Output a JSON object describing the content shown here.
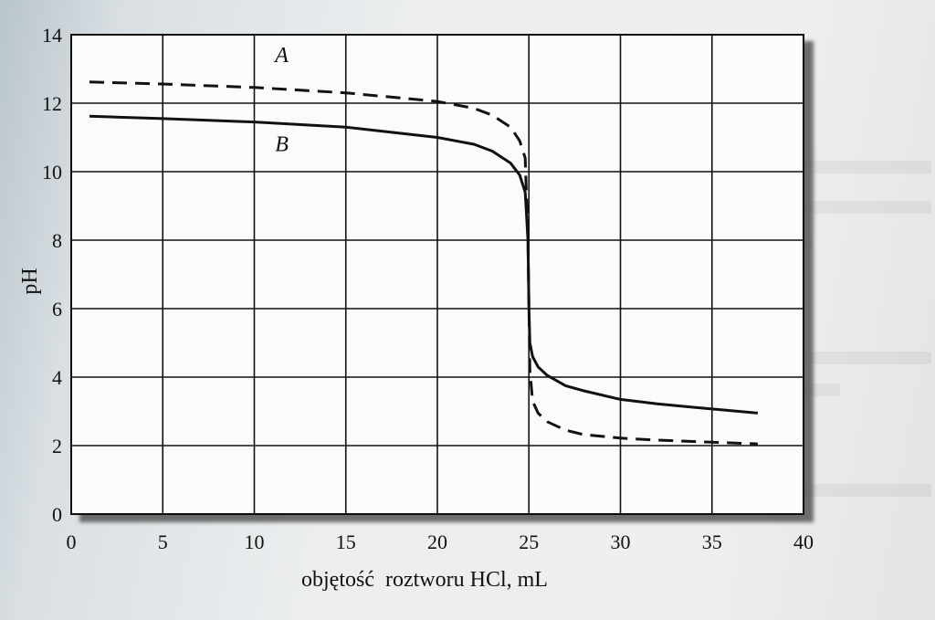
{
  "chart_data": {
    "type": "line",
    "title": "",
    "xlabel": "objętość  roztworu HCl, mL",
    "ylabel": "pH",
    "xlim": [
      0,
      40
    ],
    "ylim": [
      0,
      14
    ],
    "xticks": [
      0,
      5,
      10,
      15,
      20,
      25,
      30,
      35,
      40
    ],
    "yticks": [
      0,
      2,
      4,
      6,
      8,
      10,
      12,
      14
    ],
    "grid": true,
    "legend": "none",
    "series": [
      {
        "name": "A",
        "style": "dashed",
        "color": "#111111",
        "x": [
          1,
          5,
          10,
          15,
          20,
          22,
          23,
          24,
          24.5,
          24.8,
          24.95,
          25.0,
          25.05,
          25.2,
          25.5,
          26,
          27,
          28,
          30,
          32,
          35,
          37.5
        ],
        "y": [
          12.62,
          12.56,
          12.46,
          12.3,
          12.05,
          11.85,
          11.65,
          11.3,
          10.9,
          10.4,
          8.0,
          6.0,
          4.2,
          3.3,
          2.95,
          2.7,
          2.45,
          2.32,
          2.22,
          2.16,
          2.1,
          2.05
        ]
      },
      {
        "name": "B",
        "style": "solid",
        "color": "#111111",
        "x": [
          1,
          5,
          10,
          15,
          20,
          22,
          23,
          24,
          24.5,
          24.8,
          24.95,
          25.0,
          25.05,
          25.2,
          25.5,
          26,
          27,
          28,
          30,
          32,
          35,
          37.5
        ],
        "y": [
          11.62,
          11.55,
          11.45,
          11.3,
          11.0,
          10.8,
          10.6,
          10.25,
          9.9,
          9.4,
          8.0,
          6.0,
          5.0,
          4.6,
          4.3,
          4.05,
          3.75,
          3.6,
          3.35,
          3.22,
          3.07,
          2.95
        ]
      }
    ],
    "annotations": [
      {
        "text": "A",
        "x": 11.5,
        "y": 13.2
      },
      {
        "text": "B",
        "x": 11.5,
        "y": 10.6
      }
    ]
  }
}
